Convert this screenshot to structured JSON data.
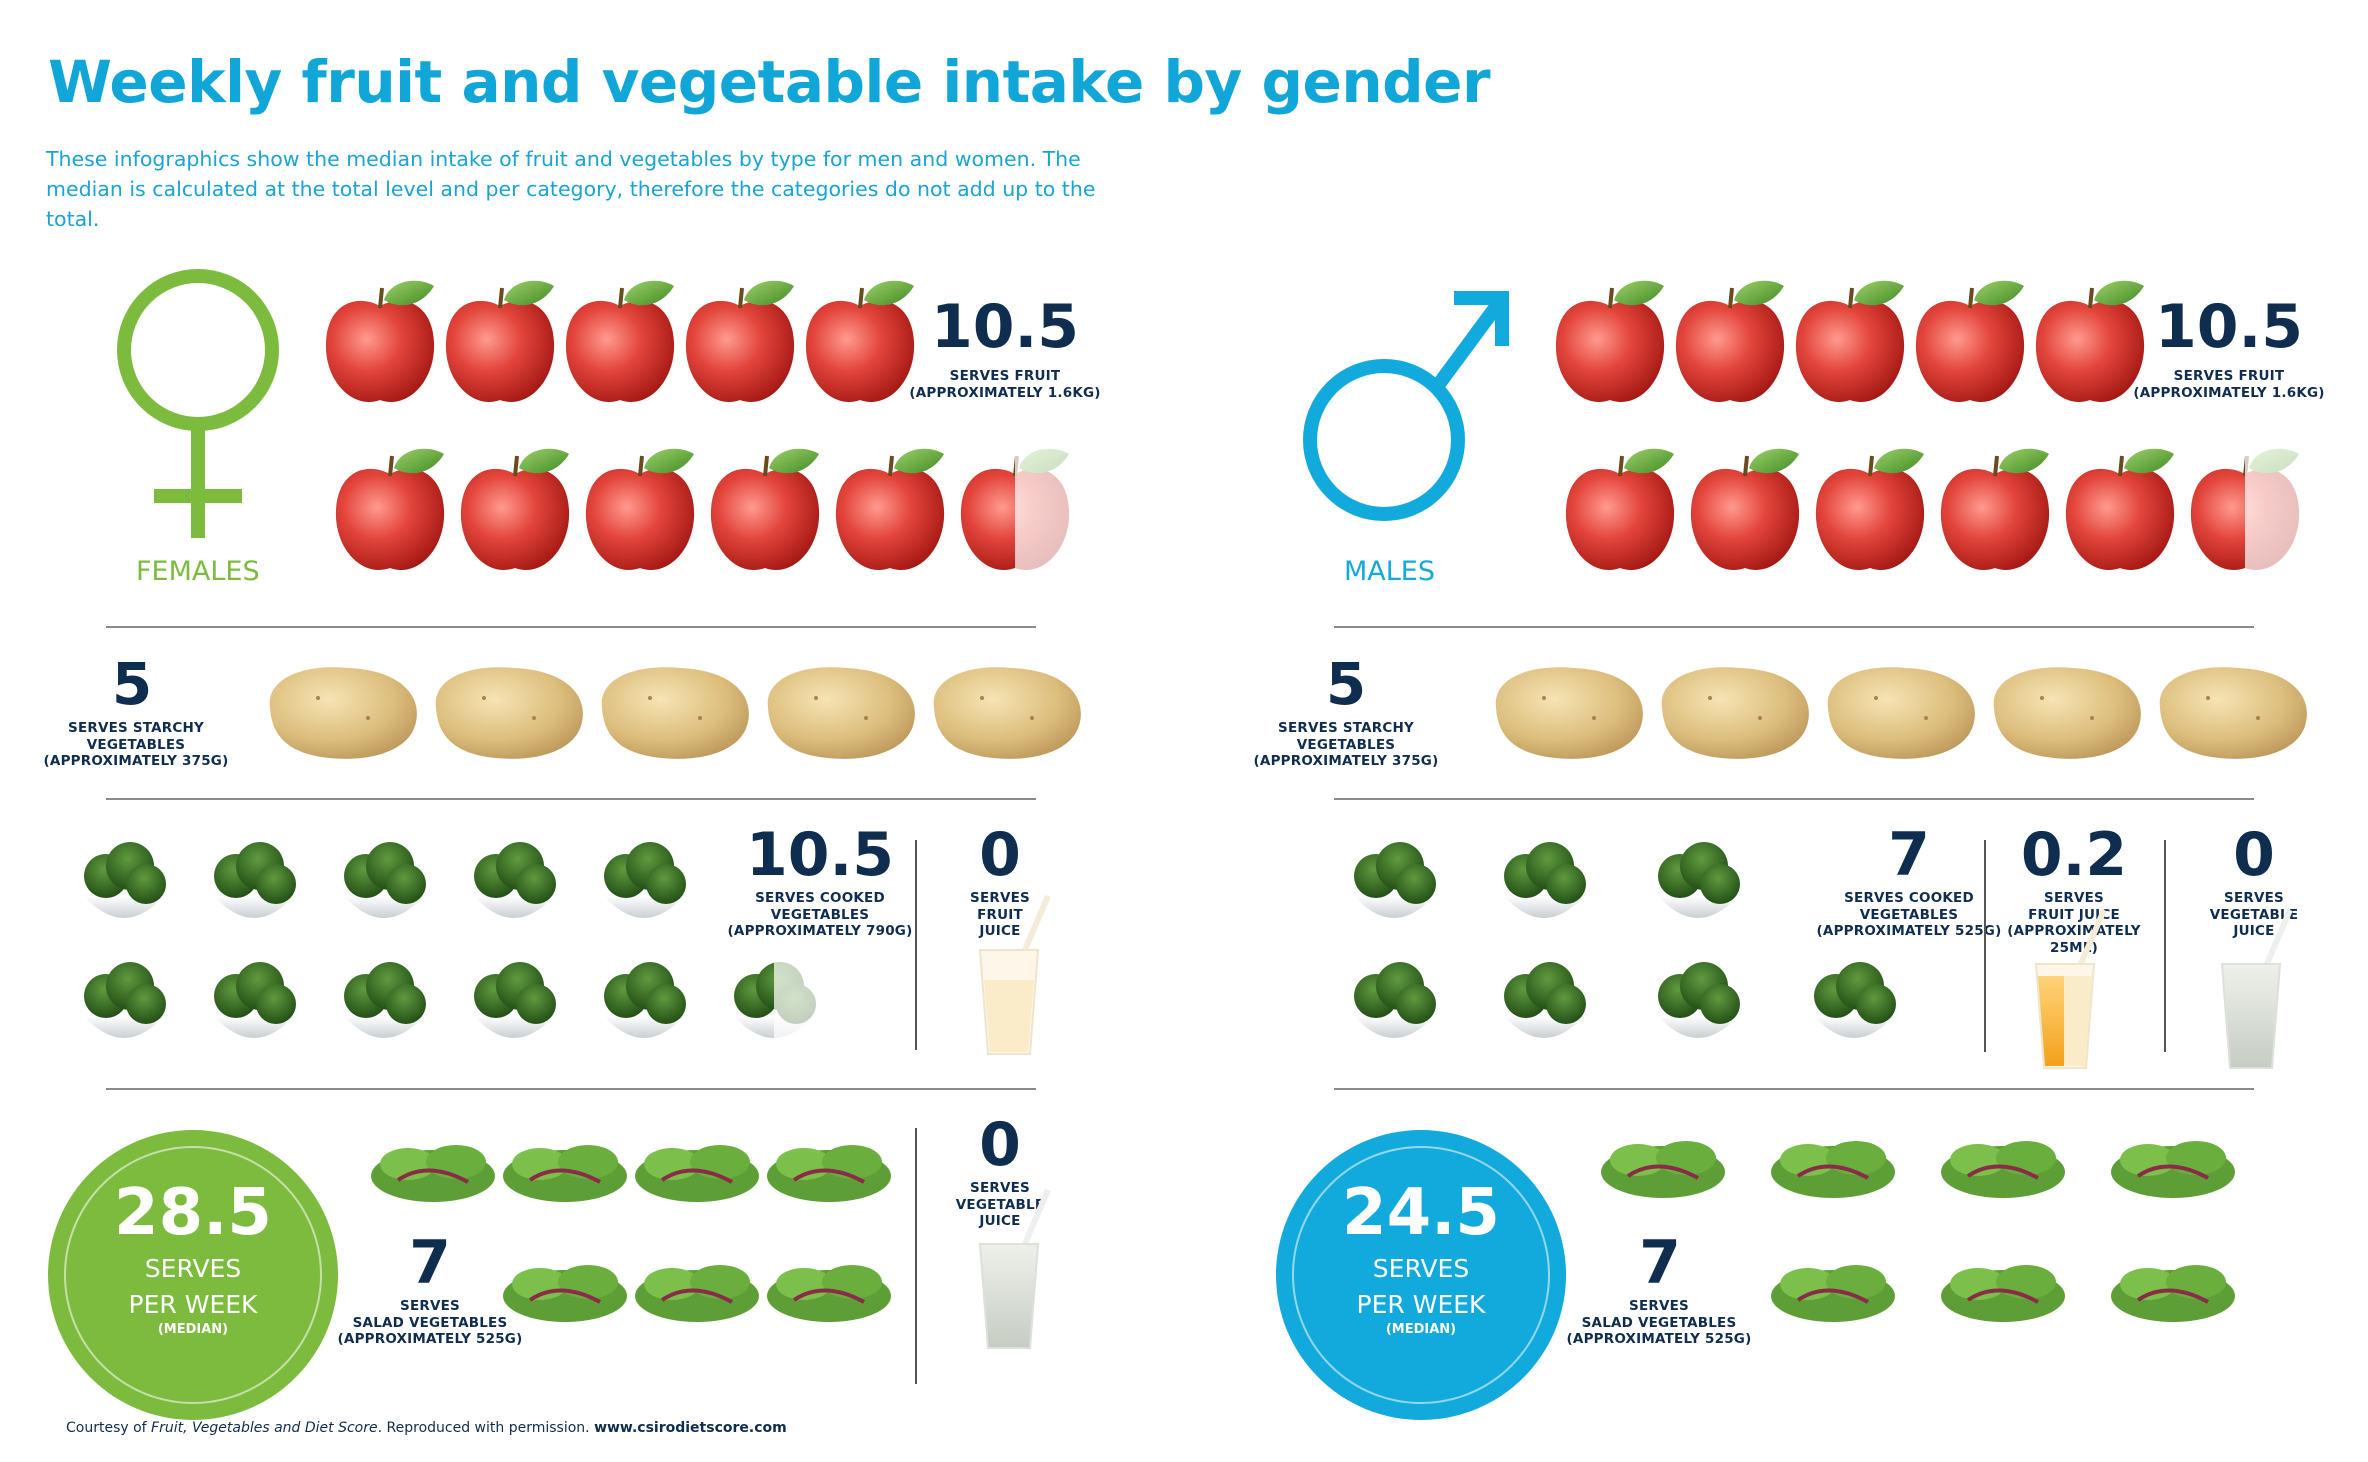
{
  "header": {
    "title": "Weekly fruit and vegetable intake by gender",
    "intro_line1": "These infographics show the median intake of fruit and vegetables by type for men and women. The",
    "intro_line2": "median is calculated at the total level and per category, therefore the categories do not add up to the total."
  },
  "colors": {
    "female": "#7dbb3e",
    "male": "#12a9dd",
    "navy": "#0f2d4f"
  },
  "females": {
    "label": "FEMALES",
    "fruit": {
      "value": "10.5",
      "label1": "SERVES FRUIT",
      "label2": "(APPROXIMATELY 1.6KG)"
    },
    "starchy": {
      "value": "5",
      "label1": "SERVES STARCHY",
      "label2": "VEGETABLES",
      "label3": "(APPROXIMATELY 375G)"
    },
    "cooked": {
      "value": "10.5",
      "label1": "SERVES COOKED",
      "label2": "VEGETABLES",
      "label3": "(APPROXIMATELY 790G)"
    },
    "fruit_juice": {
      "value": "0",
      "label1": "SERVES",
      "label2": "FRUIT",
      "label3": "JUICE"
    },
    "vegetable_juice": {
      "value": "0",
      "label1": "SERVES",
      "label2": "VEGETABLE",
      "label3": "JUICE"
    },
    "salad": {
      "value": "7",
      "label1": "SERVES",
      "label2": "SALAD VEGETABLES",
      "label3": "(APPROXIMATELY 525G)"
    },
    "total": {
      "value": "28.5",
      "line1": "SERVES",
      "line2": "PER WEEK",
      "line3": "(MEDIAN)"
    }
  },
  "males": {
    "label": "MALES",
    "fruit": {
      "value": "10.5",
      "label1": "SERVES FRUIT",
      "label2": "(APPROXIMATELY 1.6KG)"
    },
    "starchy": {
      "value": "5",
      "label1": "SERVES STARCHY",
      "label2": "VEGETABLES",
      "label3": "(APPROXIMATELY 375G)"
    },
    "cooked": {
      "value": "7",
      "label1": "SERVES COOKED",
      "label2": "VEGETABLES",
      "label3": "(APPROXIMATELY 525G)"
    },
    "fruit_juice": {
      "value": "0.2",
      "label1": "SERVES",
      "label2": "FRUIT JUICE",
      "label3": "(APPROXIMATELY",
      "label4": "25ML)"
    },
    "vegetable_juice": {
      "value": "0",
      "label1": "SERVES",
      "label2": "VEGETABLE",
      "label3": "JUICE"
    },
    "salad": {
      "value": "7",
      "label1": "SERVES",
      "label2": "SALAD VEGETABLES",
      "label3": "(APPROXIMATELY 525G)"
    },
    "total": {
      "value": "24.5",
      "line1": "SERVES",
      "line2": "PER WEEK",
      "line3": "(MEDIAN)"
    }
  },
  "footer": {
    "prefix": "Courtesy of ",
    "source": "Fruit, Vegetables and Diet Score",
    "suffix": ". Reproduced with permission. ",
    "url": "www.csirodietscore.com"
  }
}
